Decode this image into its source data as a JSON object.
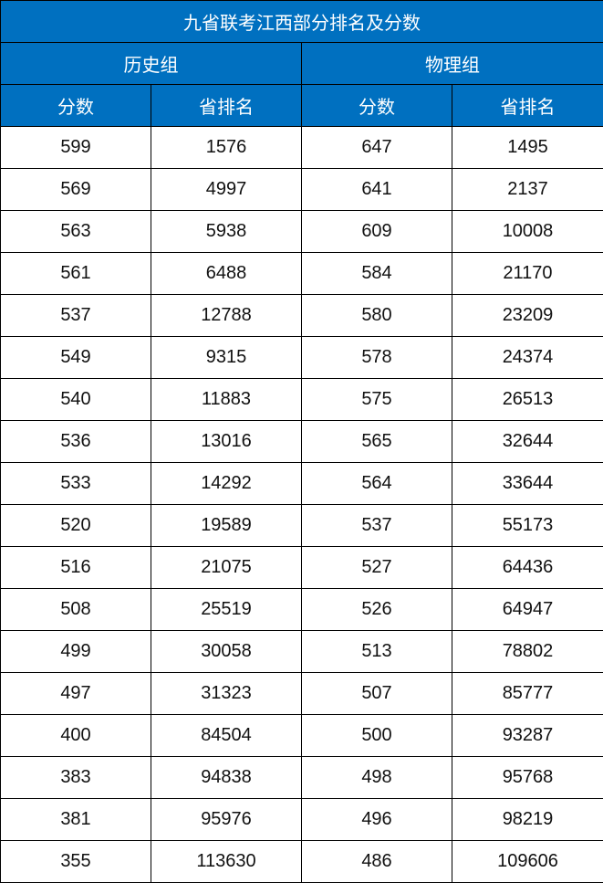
{
  "title": "九省联考江西部分排名及分数",
  "groups": [
    "历史组",
    "物理组"
  ],
  "columns": [
    "分数",
    "省排名",
    "分数",
    "省排名"
  ],
  "header_color": "#0070C0",
  "rows": [
    [
      "599",
      "1576",
      "647",
      "1495"
    ],
    [
      "569",
      "4997",
      "641",
      "2137"
    ],
    [
      "563",
      "5938",
      "609",
      "10008"
    ],
    [
      "561",
      "6488",
      "584",
      "21170"
    ],
    [
      "537",
      "12788",
      "580",
      "23209"
    ],
    [
      "549",
      "9315",
      "578",
      "24374"
    ],
    [
      "540",
      "11883",
      "575",
      "26513"
    ],
    [
      "536",
      "13016",
      "565",
      "32644"
    ],
    [
      "533",
      "14292",
      "564",
      "33644"
    ],
    [
      "520",
      "19589",
      "537",
      "55173"
    ],
    [
      "516",
      "21075",
      "527",
      "64436"
    ],
    [
      "508",
      "25519",
      "526",
      "64947"
    ],
    [
      "499",
      "30058",
      "513",
      "78802"
    ],
    [
      "497",
      "31323",
      "507",
      "85777"
    ],
    [
      "400",
      "84504",
      "500",
      "93287"
    ],
    [
      "383",
      "94838",
      "498",
      "95768"
    ],
    [
      "381",
      "95976",
      "496",
      "98219"
    ],
    [
      "355",
      "113630",
      "486",
      "109606"
    ]
  ]
}
